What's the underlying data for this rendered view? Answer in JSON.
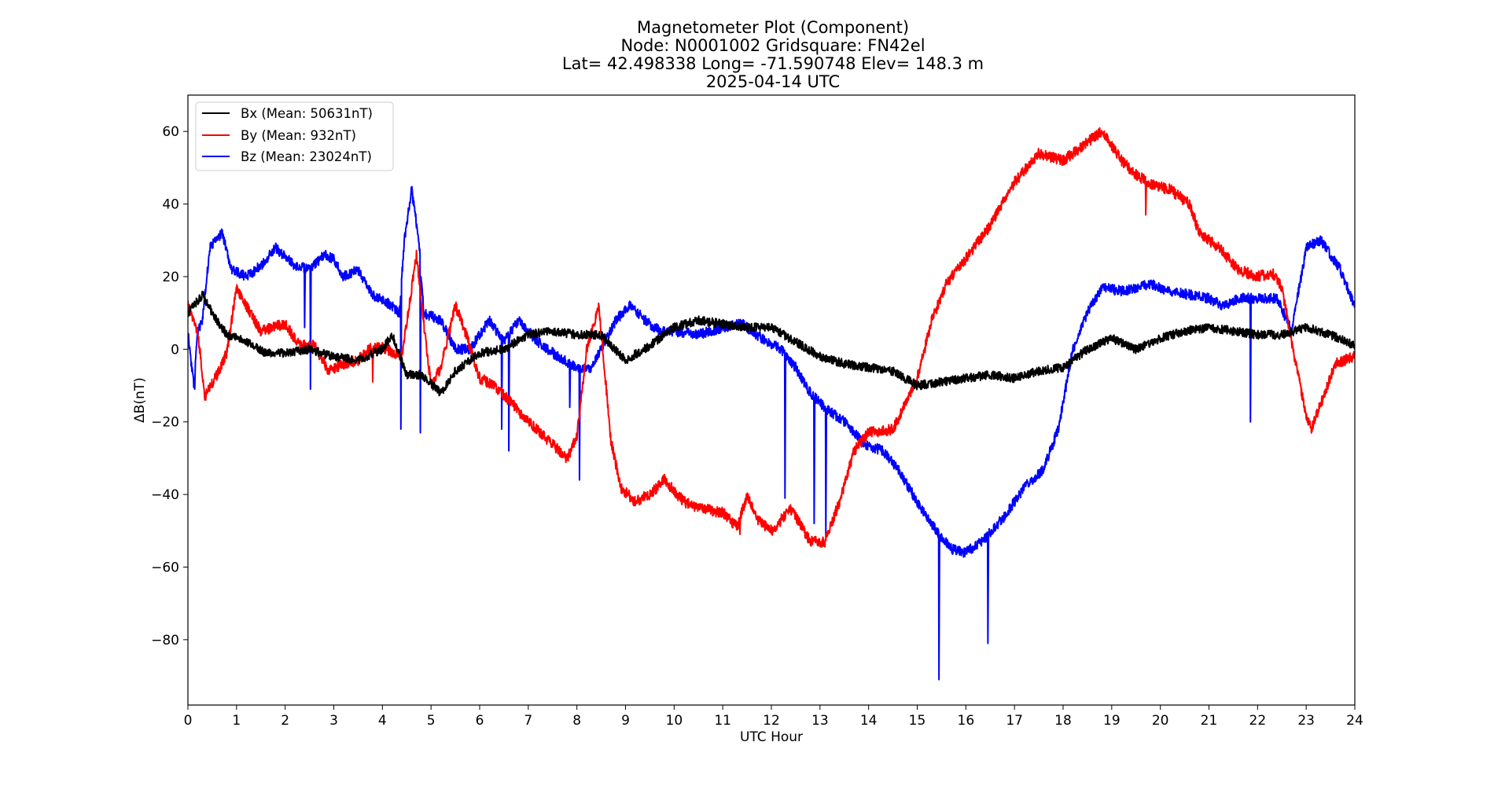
{
  "chart_data": {
    "type": "line",
    "title_lines": [
      "Magnetometer Plot (Component)",
      "Node:  N0001002     Gridsquare:  FN42el",
      "Lat= 42.498338    Long= -71.590748    Elev= 148.3 m",
      "2025-04-14  UTC"
    ],
    "xlabel": "UTC Hour",
    "ylabel": "ΔB(nT)",
    "xlim": [
      0,
      24
    ],
    "ylim": [
      -98,
      70
    ],
    "xticks": [
      0,
      1,
      2,
      3,
      4,
      5,
      6,
      7,
      8,
      9,
      10,
      11,
      12,
      13,
      14,
      15,
      16,
      17,
      18,
      19,
      20,
      21,
      22,
      23,
      24
    ],
    "yticks": [
      60,
      40,
      20,
      0,
      -20,
      -40,
      -60,
      -80
    ],
    "ytick_labels": [
      "60",
      "40",
      "20",
      "0",
      "−20",
      "−40",
      "−60",
      "−80"
    ],
    "grid": false,
    "legend_position": "top-left",
    "series": [
      {
        "name": "Bx",
        "label": "Bx (Mean: 50631nT)",
        "color": "#000000",
        "noise": 1.2,
        "points": [
          [
            0,
            10
          ],
          [
            0.3,
            15
          ],
          [
            0.5,
            10
          ],
          [
            0.8,
            4
          ],
          [
            1.2,
            2
          ],
          [
            1.6,
            -1
          ],
          [
            2,
            -1
          ],
          [
            2.5,
            0
          ],
          [
            3,
            -2
          ],
          [
            3.5,
            -3
          ],
          [
            4,
            0
          ],
          [
            4.2,
            4
          ],
          [
            4.5,
            -7
          ],
          [
            4.8,
            -7
          ],
          [
            5.2,
            -12
          ],
          [
            5.5,
            -6
          ],
          [
            6,
            -1
          ],
          [
            6.5,
            0
          ],
          [
            7,
            4
          ],
          [
            7.5,
            5
          ],
          [
            8,
            4
          ],
          [
            8.5,
            4
          ],
          [
            9,
            -3
          ],
          [
            9.5,
            1
          ],
          [
            10,
            6
          ],
          [
            10.5,
            8
          ],
          [
            11,
            7
          ],
          [
            11.5,
            6
          ],
          [
            12,
            6
          ],
          [
            12.5,
            2
          ],
          [
            13,
            -2
          ],
          [
            13.5,
            -4
          ],
          [
            14,
            -5
          ],
          [
            14.5,
            -6
          ],
          [
            15,
            -10
          ],
          [
            15.5,
            -9
          ],
          [
            16,
            -8
          ],
          [
            16.5,
            -7
          ],
          [
            17,
            -8
          ],
          [
            17.5,
            -6
          ],
          [
            18,
            -5
          ],
          [
            18.5,
            0
          ],
          [
            19,
            3
          ],
          [
            19.5,
            0
          ],
          [
            20,
            3
          ],
          [
            20.5,
            5
          ],
          [
            21,
            6
          ],
          [
            21.5,
            5
          ],
          [
            22,
            4
          ],
          [
            22.5,
            4
          ],
          [
            23,
            6
          ],
          [
            23.5,
            4
          ],
          [
            24,
            1
          ]
        ]
      },
      {
        "name": "By",
        "label": "By (Mean: 932nT)",
        "color": "#ff0000",
        "noise": 1.5,
        "points": [
          [
            0,
            12
          ],
          [
            0.2,
            5
          ],
          [
            0.35,
            -13
          ],
          [
            0.6,
            -7
          ],
          [
            0.8,
            -1
          ],
          [
            1,
            17
          ],
          [
            1.2,
            12
          ],
          [
            1.5,
            5
          ],
          [
            2,
            7
          ],
          [
            2.3,
            1
          ],
          [
            2.6,
            1
          ],
          [
            2.9,
            -6
          ],
          [
            3.2,
            -4
          ],
          [
            3.5,
            -3
          ],
          [
            3.8,
            1
          ],
          [
            4.1,
            0
          ],
          [
            4.4,
            -2
          ],
          [
            4.7,
            26
          ],
          [
            4.85,
            7
          ],
          [
            5,
            -10
          ],
          [
            5.2,
            -5
          ],
          [
            5.5,
            12
          ],
          [
            5.7,
            5
          ],
          [
            6,
            -8
          ],
          [
            6.3,
            -10
          ],
          [
            6.6,
            -14
          ],
          [
            7,
            -20
          ],
          [
            7.4,
            -25
          ],
          [
            7.8,
            -30
          ],
          [
            8,
            -24
          ],
          [
            8.2,
            0
          ],
          [
            8.45,
            12
          ],
          [
            8.7,
            -25
          ],
          [
            8.9,
            -38
          ],
          [
            9.2,
            -42
          ],
          [
            9.5,
            -40
          ],
          [
            9.8,
            -36
          ],
          [
            10.2,
            -42
          ],
          [
            10.6,
            -44
          ],
          [
            11,
            -45
          ],
          [
            11.3,
            -49
          ],
          [
            11.5,
            -40
          ],
          [
            11.7,
            -47
          ],
          [
            12,
            -50
          ],
          [
            12.4,
            -44
          ],
          [
            12.8,
            -53
          ],
          [
            13.1,
            -53
          ],
          [
            13.4,
            -42
          ],
          [
            13.7,
            -28
          ],
          [
            14,
            -23
          ],
          [
            14.5,
            -22
          ],
          [
            14.8,
            -14
          ],
          [
            15,
            -8
          ],
          [
            15.3,
            8
          ],
          [
            15.6,
            18
          ],
          [
            16,
            25
          ],
          [
            16.5,
            34
          ],
          [
            17,
            46
          ],
          [
            17.5,
            54
          ],
          [
            18,
            52
          ],
          [
            18.3,
            55
          ],
          [
            18.5,
            57
          ],
          [
            18.8,
            60
          ],
          [
            19.2,
            52
          ],
          [
            19.5,
            48
          ],
          [
            19.9,
            45
          ],
          [
            20.2,
            44
          ],
          [
            20.6,
            40
          ],
          [
            20.8,
            32
          ],
          [
            21.2,
            28
          ],
          [
            21.6,
            22
          ],
          [
            22,
            20
          ],
          [
            22.3,
            21
          ],
          [
            22.5,
            17
          ],
          [
            22.8,
            -5
          ],
          [
            23,
            -18
          ],
          [
            23.1,
            -22
          ],
          [
            23.3,
            -15
          ],
          [
            23.6,
            -4
          ],
          [
            24,
            -2
          ]
        ]
      },
      {
        "name": "Bz",
        "label": "Bz (Mean: 23024nT)",
        "color": "#0000ff",
        "noise": 1.4,
        "points": [
          [
            0,
            5
          ],
          [
            0.12,
            -10
          ],
          [
            0.2,
            5
          ],
          [
            0.3,
            8
          ],
          [
            0.45,
            28
          ],
          [
            0.7,
            32
          ],
          [
            0.9,
            22
          ],
          [
            1.2,
            20
          ],
          [
            1.5,
            23
          ],
          [
            1.8,
            28
          ],
          [
            2.2,
            23
          ],
          [
            2.5,
            22
          ],
          [
            2.8,
            26
          ],
          [
            3,
            25
          ],
          [
            3.2,
            20
          ],
          [
            3.5,
            22
          ],
          [
            3.8,
            15
          ],
          [
            4.2,
            12
          ],
          [
            4.35,
            10
          ],
          [
            4.45,
            30
          ],
          [
            4.6,
            44
          ],
          [
            4.75,
            30
          ],
          [
            4.85,
            10
          ],
          [
            5.2,
            8
          ],
          [
            5.5,
            0
          ],
          [
            5.8,
            0
          ],
          [
            6.2,
            8
          ],
          [
            6.5,
            2
          ],
          [
            6.8,
            8
          ],
          [
            7.2,
            2
          ],
          [
            7.6,
            -2
          ],
          [
            8,
            -5
          ],
          [
            8.3,
            -5
          ],
          [
            8.5,
            0
          ],
          [
            8.8,
            8
          ],
          [
            9.1,
            12
          ],
          [
            9.4,
            8
          ],
          [
            9.7,
            5
          ],
          [
            10,
            5
          ],
          [
            10.5,
            4
          ],
          [
            11,
            6
          ],
          [
            11.4,
            7
          ],
          [
            11.8,
            3
          ],
          [
            12.2,
            0
          ],
          [
            12.5,
            -5
          ],
          [
            12.8,
            -12
          ],
          [
            13.1,
            -16
          ],
          [
            13.5,
            -20
          ],
          [
            13.9,
            -26
          ],
          [
            14.3,
            -28
          ],
          [
            14.6,
            -33
          ],
          [
            15,
            -42
          ],
          [
            15.4,
            -50
          ],
          [
            15.7,
            -55
          ],
          [
            16,
            -56
          ],
          [
            16.4,
            -52
          ],
          [
            16.8,
            -46
          ],
          [
            17.2,
            -38
          ],
          [
            17.6,
            -33
          ],
          [
            17.9,
            -22
          ],
          [
            18.2,
            0
          ],
          [
            18.5,
            10
          ],
          [
            18.8,
            17
          ],
          [
            19.2,
            16
          ],
          [
            19.5,
            17
          ],
          [
            19.8,
            18
          ],
          [
            20.2,
            16
          ],
          [
            20.6,
            15
          ],
          [
            21,
            14
          ],
          [
            21.3,
            12
          ],
          [
            21.6,
            14
          ],
          [
            22,
            14
          ],
          [
            22.4,
            14
          ],
          [
            22.7,
            5
          ],
          [
            23,
            28
          ],
          [
            23.3,
            30
          ],
          [
            23.7,
            22
          ],
          [
            24,
            12
          ]
        ]
      }
    ],
    "spikes": [
      {
        "series": "Bz",
        "x": 0.14,
        "y": -11
      },
      {
        "series": "Bz",
        "x": 2.4,
        "y": 6
      },
      {
        "series": "Bz",
        "x": 2.52,
        "y": -11
      },
      {
        "series": "Bz",
        "x": 4.38,
        "y": -22
      },
      {
        "series": "Bz",
        "x": 4.78,
        "y": -23
      },
      {
        "series": "Bz",
        "x": 6.45,
        "y": -22
      },
      {
        "series": "Bz",
        "x": 6.6,
        "y": -28
      },
      {
        "series": "Bz",
        "x": 7.85,
        "y": -16
      },
      {
        "series": "Bz",
        "x": 8.05,
        "y": -36
      },
      {
        "series": "Bz",
        "x": 12.28,
        "y": -41
      },
      {
        "series": "Bz",
        "x": 12.88,
        "y": -48
      },
      {
        "series": "Bz",
        "x": 13.12,
        "y": -52
      },
      {
        "series": "Bz",
        "x": 15.45,
        "y": -91
      },
      {
        "series": "Bz",
        "x": 16.45,
        "y": -81
      },
      {
        "series": "Bz",
        "x": 21.85,
        "y": -20
      },
      {
        "series": "By",
        "x": 3.8,
        "y": -9
      },
      {
        "series": "By",
        "x": 11.35,
        "y": -51
      },
      {
        "series": "By",
        "x": 19.7,
        "y": 37
      }
    ]
  }
}
